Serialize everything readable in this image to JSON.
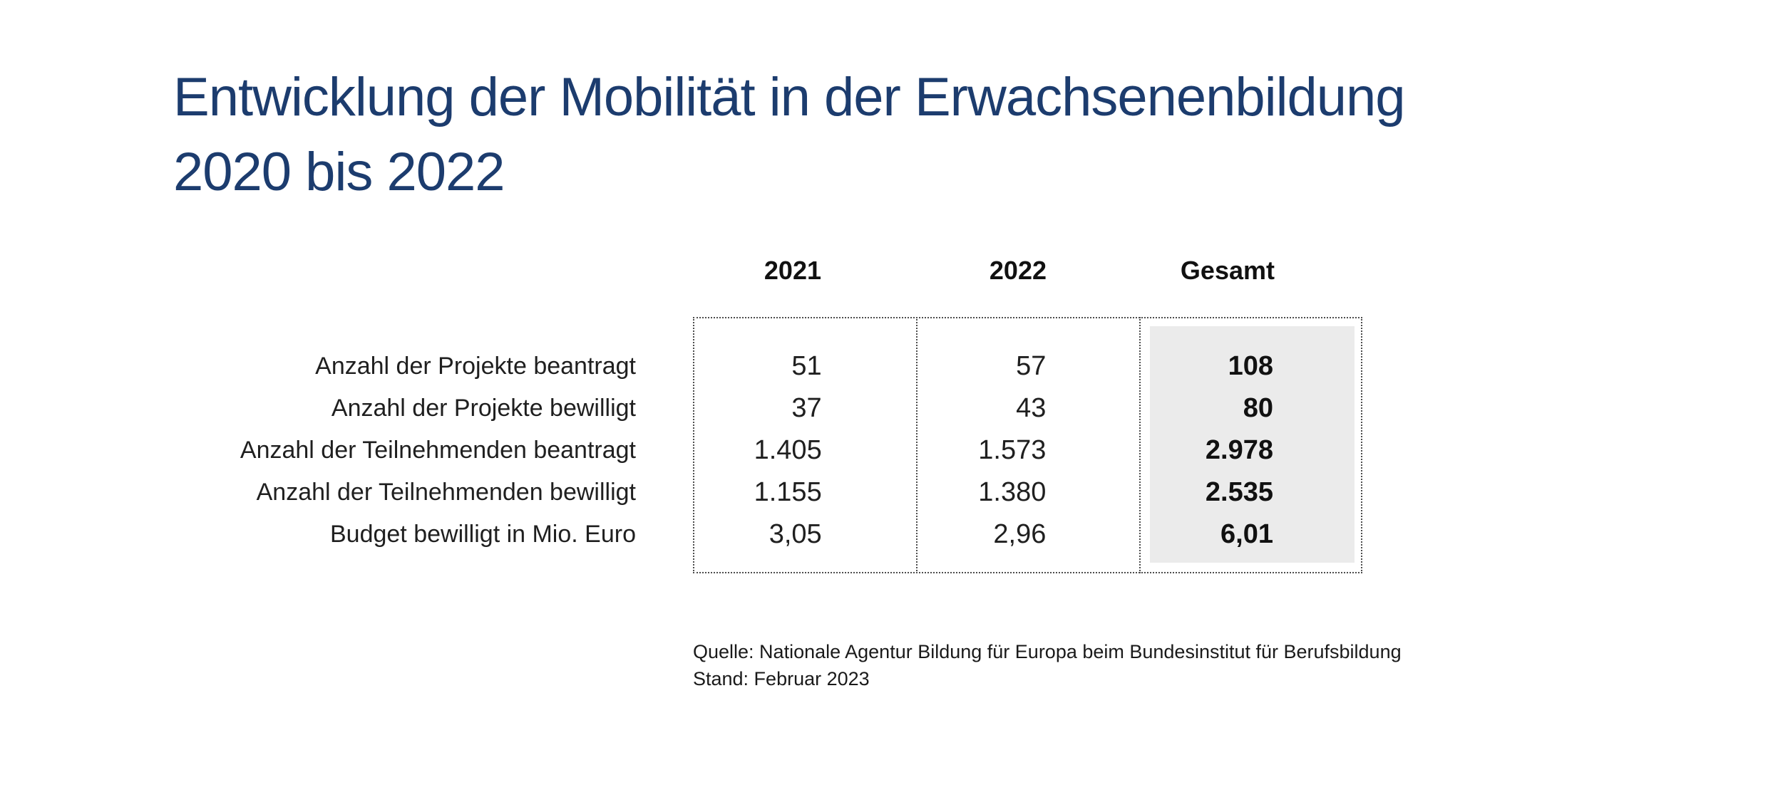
{
  "title": {
    "line1": "Entwicklung der Mobilität in der Erwachsenenbildung",
    "line2": "2020 bis 2022"
  },
  "table": {
    "column_headers": [
      "2021",
      "2022",
      "Gesamt"
    ],
    "rows": [
      {
        "label": "Anzahl der Projekte beantragt",
        "values": [
          "51",
          "57",
          "108"
        ]
      },
      {
        "label": "Anzahl der Projekte bewilligt",
        "values": [
          "37",
          "43",
          "80"
        ]
      },
      {
        "label": "Anzahl der Teilnehmenden beantragt",
        "values": [
          "1.405",
          "1.573",
          "2.978"
        ]
      },
      {
        "label": "Anzahl der Teilnehmenden bewilligt",
        "values": [
          "1.155",
          "1.380",
          "2.535"
        ]
      },
      {
        "label": "Budget bewilligt in Mio. Euro",
        "values": [
          "3,05",
          "2,96",
          "6,01"
        ]
      }
    ]
  },
  "source": {
    "line1": "Quelle: Nationale Agentur Bildung für Europa beim Bundesinstitut für Berufsbildung",
    "line2": "Stand: Februar 2023"
  },
  "colors": {
    "title_navy": "#1c3c6e",
    "body_text": "#1f1f1f",
    "total_highlight_bg": "#ebebeb",
    "dotted_border": "#4d4d4d"
  },
  "chart_data": {
    "type": "table",
    "title": "Entwicklung der Mobilität in der Erwachsenenbildung 2020 bis 2022",
    "columns": [
      "2021",
      "2022",
      "Gesamt"
    ],
    "row_labels": [
      "Anzahl der Projekte beantragt",
      "Anzahl der Projekte bewilligt",
      "Anzahl der Teilnehmenden beantragt",
      "Anzahl der Teilnehmenden bewilligt",
      "Budget bewilligt in Mio. Euro"
    ],
    "values": [
      [
        51,
        57,
        108
      ],
      [
        37,
        43,
        80
      ],
      [
        1405,
        1573,
        2978
      ],
      [
        1155,
        1380,
        2535
      ],
      [
        3.05,
        2.96,
        6.01
      ]
    ],
    "notes": [
      "Gesamt column visually highlighted with light gray background and bold numbers",
      "Quelle: Nationale Agentur Bildung für Europa beim Bundesinstitut für Berufsbildung",
      "Stand: Februar 2023"
    ]
  }
}
